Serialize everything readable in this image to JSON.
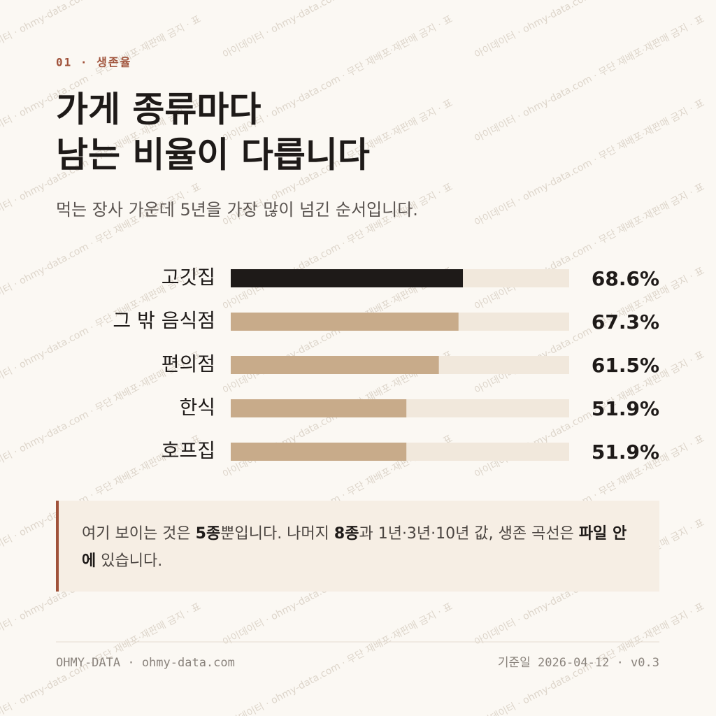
{
  "chart_data": {
    "type": "bar",
    "orientation": "horizontal",
    "kicker": "01 · 생존율",
    "title": [
      "가게 종류마다",
      "남는 비율이 다릅니다"
    ],
    "subtitle": "먹는 장사 가운데 5년을 가장 많이 넘긴 순서입니다.",
    "categories": [
      "고깃집",
      "그 밖 음식점",
      "편의점",
      "한식",
      "호프집"
    ],
    "values": [
      68.6,
      67.3,
      61.5,
      51.9,
      51.9
    ],
    "value_labels": [
      "68.6%",
      "67.3%",
      "61.5%",
      "51.9%",
      "51.9%"
    ],
    "colors": [
      "#1e1a18",
      "#c8ab8a",
      "#c8ab8a",
      "#c8ab8a",
      "#c8ab8a"
    ],
    "track_color": "#f1e8dc",
    "xlim": [
      0,
      100
    ],
    "note": [
      {
        "text": "여기 보이는 것은 ",
        "bold": false
      },
      {
        "text": "5종",
        "bold": true
      },
      {
        "text": "뿐입니다. 나머지 ",
        "bold": false
      },
      {
        "text": "8종",
        "bold": true
      },
      {
        "text": "과 1년·3년·10년 값, 생존 곡선은 ",
        "bold": false
      },
      {
        "text": "파일 안에",
        "bold": true
      },
      {
        "text": " 있습니다.",
        "bold": false
      }
    ],
    "footer_left": "OHMY-DATA · ohmy-data.com",
    "footer_right": "기준일 2026-04-12 · v0.3",
    "watermark": "아이데이터 · ohmy-data.com · 무단 재배포·재판매 금지 · 표"
  }
}
